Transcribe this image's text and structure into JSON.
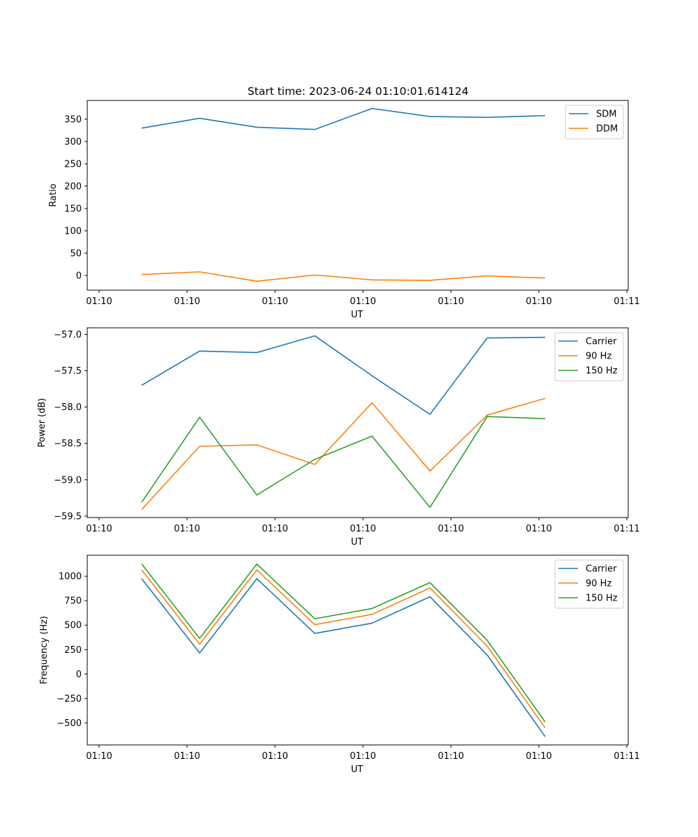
{
  "figure_title": "Start time: 2023-06-24 01:10:01.614124",
  "colors": {
    "blue": "#1f77b4",
    "orange": "#ff7f0e",
    "green": "#2ca02c"
  },
  "chart_data": [
    {
      "type": "line",
      "xlabel": "UT",
      "ylabel": "Ratio",
      "x_tick_labels": [
        "01:10",
        "01:10",
        "01:10",
        "01:10",
        "01:10",
        "01:10",
        "01:11"
      ],
      "y_ticks": [
        0,
        50,
        100,
        150,
        200,
        250,
        300,
        350
      ],
      "ylim": [
        -33,
        392
      ],
      "legend_position": "upper right",
      "series": [
        {
          "name": "SDM",
          "color": "#1f77b4",
          "values": [
            330,
            352,
            332,
            327,
            374,
            356,
            354,
            358
          ]
        },
        {
          "name": "DDM",
          "color": "#ff7f0e",
          "values": [
            2,
            8,
            -13,
            1,
            -10,
            -11,
            -1,
            -6
          ]
        }
      ]
    },
    {
      "type": "line",
      "xlabel": "UT",
      "ylabel": "Power (dB)",
      "x_tick_labels": [
        "01:10",
        "01:10",
        "01:10",
        "01:10",
        "01:10",
        "01:10",
        "01:11"
      ],
      "y_ticks": [
        -59.5,
        -59.0,
        -58.5,
        -58.0,
        -57.5,
        -57.0
      ],
      "y_tick_labels": [
        "−59.5",
        "−59.0",
        "−58.5",
        "−58.0",
        "−57.5",
        "−57.0"
      ],
      "ylim": [
        -59.52,
        -56.91
      ],
      "legend_position": "upper right",
      "series": [
        {
          "name": "Carrier",
          "color": "#1f77b4",
          "values": [
            -57.7,
            -57.23,
            -57.25,
            -57.02,
            -57.57,
            -58.1,
            -57.05,
            -57.04
          ]
        },
        {
          "name": "90 Hz",
          "color": "#ff7f0e",
          "values": [
            -59.41,
            -58.54,
            -58.52,
            -58.79,
            -57.94,
            -58.88,
            -58.11,
            -57.88
          ]
        },
        {
          "name": "150 Hz",
          "color": "#2ca02c",
          "values": [
            -59.31,
            -58.14,
            -59.21,
            -58.72,
            -58.4,
            -59.38,
            -58.13,
            -58.16
          ]
        }
      ]
    },
    {
      "type": "line",
      "xlabel": "UT",
      "ylabel": "Frequency (Hz)",
      "x_tick_labels": [
        "01:10",
        "01:10",
        "01:10",
        "01:10",
        "01:10",
        "01:10",
        "01:11"
      ],
      "y_ticks": [
        -500,
        -250,
        0,
        250,
        500,
        750,
        1000
      ],
      "y_tick_labels": [
        "−500",
        "−250",
        "0",
        "250",
        "500",
        "750",
        "1000"
      ],
      "ylim": [
        -725,
        1215
      ],
      "legend_position": "upper right",
      "series": [
        {
          "name": "Carrier",
          "color": "#1f77b4",
          "values": [
            975,
            215,
            975,
            415,
            520,
            790,
            195,
            -640
          ]
        },
        {
          "name": "90 Hz",
          "color": "#ff7f0e",
          "values": [
            1065,
            305,
            1065,
            505,
            610,
            880,
            285,
            -550
          ]
        },
        {
          "name": "150 Hz",
          "color": "#2ca02c",
          "values": [
            1125,
            365,
            1125,
            565,
            670,
            935,
            345,
            -490
          ]
        }
      ]
    }
  ]
}
